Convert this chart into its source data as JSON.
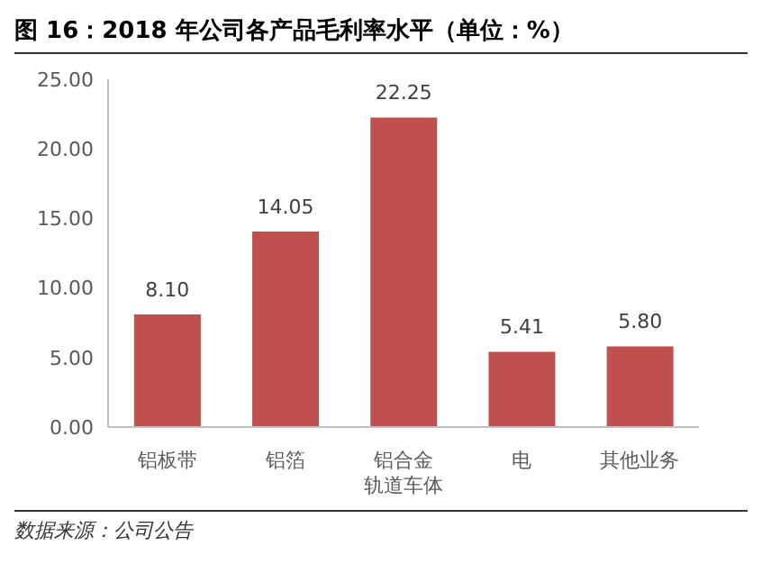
{
  "chart_data": {
    "type": "bar",
    "title": "图 16：2018 年公司各产品毛利率水平（单位：%）",
    "categories": [
      "铝板带",
      "铝箔",
      "铝合金轨道车体",
      "电",
      "其他业务"
    ],
    "values": [
      8.1,
      14.05,
      22.25,
      5.41,
      5.8
    ],
    "value_labels": [
      "8.10",
      "14.05",
      "22.25",
      "5.41",
      "5.80"
    ],
    "color": "#c0504d",
    "ylim": [
      0,
      25
    ],
    "yticks": [
      {
        "value": 0,
        "label": "0.00"
      },
      {
        "value": 5,
        "label": "5.00"
      },
      {
        "value": 10,
        "label": "10.00"
      },
      {
        "value": 15,
        "label": "15.00"
      },
      {
        "value": 20,
        "label": "20.00"
      },
      {
        "value": 25,
        "label": "25.00"
      }
    ],
    "grid": false,
    "annotations": [
      "数据来源：公司公告"
    ]
  }
}
